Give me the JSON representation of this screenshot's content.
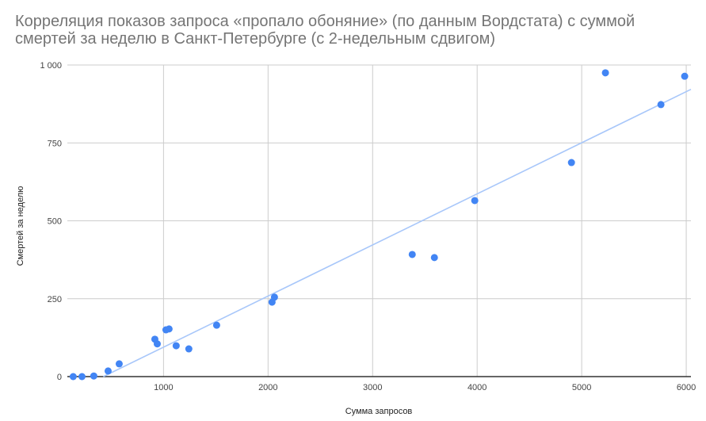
{
  "chart_data": {
    "type": "scatter",
    "title": "Корреляция показов запроса «пропало обоняние» (по данным Вордстата) с суммой смертей за неделю в Санкт-Петербурге (с 2-недельным сдвигом)",
    "xlabel": "Сумма запросов",
    "ylabel": "Смертей за неделю",
    "xlim": [
      80,
      6045
    ],
    "ylim": [
      0,
      1000
    ],
    "xticks": [
      1000,
      2000,
      3000,
      4000,
      5000,
      6000
    ],
    "xtick_labels": [
      "1000",
      "2000",
      "3000",
      "4000",
      "5000",
      "6000"
    ],
    "yticks": [
      0,
      250,
      500,
      750,
      1000
    ],
    "ytick_labels": [
      "0",
      "250",
      "500",
      "750",
      "1 000"
    ],
    "grid": true,
    "legend": "none",
    "point_color": "#4285f4",
    "trendline_color": "#a8c7fa",
    "trendline": {
      "type": "linear",
      "slope": 0.164,
      "intercept": -69.5
    },
    "points": [
      [
        136,
        0
      ],
      [
        220,
        0
      ],
      [
        333,
        2
      ],
      [
        470,
        18
      ],
      [
        576,
        41
      ],
      [
        917,
        120
      ],
      [
        940,
        105
      ],
      [
        1023,
        150
      ],
      [
        1053,
        153
      ],
      [
        1121,
        99
      ],
      [
        1242,
        89
      ],
      [
        1508,
        165
      ],
      [
        2038,
        239
      ],
      [
        2061,
        255
      ],
      [
        3379,
        392
      ],
      [
        3591,
        382
      ],
      [
        3977,
        565
      ],
      [
        4902,
        687
      ],
      [
        5227,
        975
      ],
      [
        5758,
        873
      ],
      [
        5985,
        964
      ]
    ]
  }
}
